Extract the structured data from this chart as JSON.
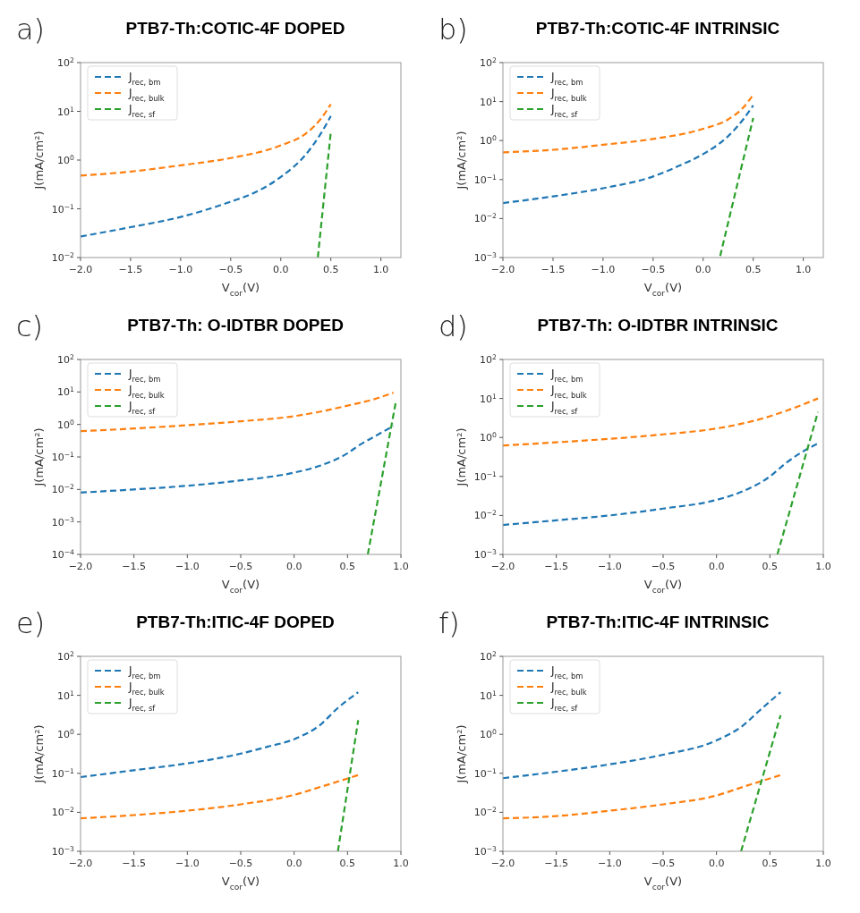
{
  "chart_data": [
    {
      "type": "line",
      "title": "PTB7-Th:COTIC-4F DOPED",
      "annotations": [
        "a)"
      ],
      "xlabel": "V$_{cor}$(V)",
      "ylabel": "J(mA/cm²)",
      "log": "y",
      "legend": "top left",
      "line_style": "dashed",
      "xlim": [
        -2,
        1.2
      ],
      "xticks": [
        {
          "value": -2,
          "label": "−2.0"
        },
        {
          "value": -1.5,
          "label": "−1.5"
        },
        {
          "value": -1,
          "label": "−1.0"
        },
        {
          "value": -0.5,
          "label": "−0.5"
        },
        {
          "value": 0,
          "label": "0.0"
        },
        {
          "value": 0.5,
          "label": "0.5"
        },
        {
          "value": 1,
          "label": "1.0"
        }
      ],
      "ylim": [
        0.01,
        100
      ],
      "yticks": [
        {
          "value": 0.01,
          "label": "10$^{−2}$"
        },
        {
          "value": 0.1,
          "label": "10$^{−1}$"
        },
        {
          "value": 1,
          "label": "10$^{0}$"
        },
        {
          "value": 10,
          "label": "10$^{1}$"
        },
        {
          "value": 100,
          "label": "10$^{2}$"
        }
      ],
      "series": [
        {
          "name": "J$_{rec, bm}$",
          "color": "#1f77b4",
          "x": [
            -2,
            -1.5,
            -1,
            -0.5,
            -0.25,
            0,
            0.25,
            0.4,
            0.5
          ],
          "values": [
            0.027,
            0.042,
            0.068,
            0.14,
            0.22,
            0.45,
            1.3,
            3.5,
            8
          ]
        },
        {
          "name": "J$_{rec, bulk}$",
          "color": "#ff7f0e",
          "x": [
            -2,
            -1.5,
            -1,
            -0.5,
            0,
            0.25,
            0.4,
            0.5
          ],
          "values": [
            0.48,
            0.58,
            0.78,
            1.1,
            2,
            3.5,
            7,
            14
          ]
        },
        {
          "name": "J$_{rec, sf}$",
          "color": "#2ca02c",
          "x": [
            0.37,
            0.5
          ],
          "values": [
            0.01,
            3.8
          ]
        }
      ]
    },
    {
      "type": "line",
      "title": "PTB7-Th:COTIC-4F INTRINSIC",
      "annotations": [
        "b)"
      ],
      "xlabel": "V$_{cor}$(V)",
      "ylabel": "J(mA/cm²)",
      "log": "y",
      "legend": "top left",
      "line_style": "dashed",
      "xlim": [
        -2,
        1.2
      ],
      "xticks": [
        {
          "value": -2,
          "label": "−2.0"
        },
        {
          "value": -1.5,
          "label": "−1.5"
        },
        {
          "value": -1,
          "label": "−1.0"
        },
        {
          "value": -0.5,
          "label": "−0.5"
        },
        {
          "value": 0,
          "label": "0.0"
        },
        {
          "value": 0.5,
          "label": "0.5"
        },
        {
          "value": 1,
          "label": "1.0"
        }
      ],
      "ylim": [
        0.001,
        100
      ],
      "yticks": [
        {
          "value": 0.001,
          "label": "10$^{−3}$"
        },
        {
          "value": 0.01,
          "label": "10$^{−2}$"
        },
        {
          "value": 0.1,
          "label": "10$^{−1}$"
        },
        {
          "value": 1,
          "label": "10$^{0}$"
        },
        {
          "value": 10,
          "label": "10$^{1}$"
        },
        {
          "value": 100,
          "label": "10$^{2}$"
        }
      ],
      "series": [
        {
          "name": "J$_{rec, bm}$",
          "color": "#1f77b4",
          "x": [
            -2,
            -1.5,
            -1,
            -0.5,
            -0.25,
            0,
            0.25,
            0.4,
            0.5
          ],
          "values": [
            0.025,
            0.037,
            0.06,
            0.12,
            0.22,
            0.45,
            1.3,
            3.5,
            8
          ]
        },
        {
          "name": "J$_{rec, bulk}$",
          "color": "#ff7f0e",
          "x": [
            -2,
            -1.5,
            -1,
            -0.5,
            0,
            0.25,
            0.4,
            0.5
          ],
          "values": [
            0.5,
            0.58,
            0.78,
            1.1,
            2,
            3.5,
            7,
            15
          ]
        },
        {
          "name": "J$_{rec, sf}$",
          "color": "#2ca02c",
          "x": [
            0.17,
            0.5
          ],
          "values": [
            0.0011,
            3.8
          ]
        }
      ]
    },
    {
      "type": "line",
      "title": "PTB7-Th: O-IDTBR DOPED",
      "annotations": [
        "c)"
      ],
      "xlabel": "V$_{cor}$(V)",
      "ylabel": "J(mA/cm²)",
      "log": "y",
      "legend": "top left",
      "line_style": "dashed",
      "xlim": [
        -2,
        1
      ],
      "xticks": [
        {
          "value": -2,
          "label": "−2.0"
        },
        {
          "value": -1.5,
          "label": "−1.5"
        },
        {
          "value": -1,
          "label": "−1.0"
        },
        {
          "value": -0.5,
          "label": "−0.5"
        },
        {
          "value": 0,
          "label": "0.0"
        },
        {
          "value": 0.5,
          "label": "0.5"
        },
        {
          "value": 1,
          "label": "1.0"
        }
      ],
      "ylim": [
        0.0001,
        100
      ],
      "yticks": [
        {
          "value": 0.0001,
          "label": "10$^{−4}$"
        },
        {
          "value": 0.001,
          "label": "10$^{−3}$"
        },
        {
          "value": 0.01,
          "label": "10$^{−2}$"
        },
        {
          "value": 0.1,
          "label": "10$^{−1}$"
        },
        {
          "value": 1,
          "label": "10$^{0}$"
        },
        {
          "value": 10,
          "label": "10$^{1}$"
        },
        {
          "value": 100,
          "label": "10$^{2}$"
        }
      ],
      "series": [
        {
          "name": "J$_{rec, bm}$",
          "color": "#1f77b4",
          "x": [
            -2,
            -1.5,
            -1,
            -0.5,
            0,
            0.25,
            0.5,
            0.6,
            0.75,
            0.93
          ],
          "values": [
            0.008,
            0.01,
            0.013,
            0.019,
            0.033,
            0.055,
            0.13,
            0.22,
            0.42,
            0.9
          ]
        },
        {
          "name": "J$_{rec, bulk}$",
          "color": "#ff7f0e",
          "x": [
            -2,
            -1.5,
            -1,
            -0.5,
            0,
            0.25,
            0.5,
            0.75,
            0.93
          ],
          "values": [
            0.62,
            0.75,
            0.95,
            1.25,
            1.8,
            2.5,
            3.8,
            6,
            9.5
          ]
        },
        {
          "name": "J$_{rec, sf}$",
          "color": "#2ca02c",
          "x": [
            0.69,
            0.95
          ],
          "values": [
            0.0001,
            4.5
          ]
        }
      ]
    },
    {
      "type": "line",
      "title": "PTB7-Th: O-IDTBR INTRINSIC",
      "annotations": [
        "d)"
      ],
      "xlabel": "V$_{cor}$(V)",
      "ylabel": "J(mA/cm²)",
      "log": "y",
      "legend": "top left",
      "line_style": "dashed",
      "xlim": [
        -2,
        1
      ],
      "xticks": [
        {
          "value": -2,
          "label": "−2.0"
        },
        {
          "value": -1.5,
          "label": "−1.5"
        },
        {
          "value": -1,
          "label": "−1.0"
        },
        {
          "value": -0.5,
          "label": "−0.5"
        },
        {
          "value": 0,
          "label": "0.0"
        },
        {
          "value": 0.5,
          "label": "0.5"
        },
        {
          "value": 1,
          "label": "1.0"
        }
      ],
      "ylim": [
        0.001,
        100
      ],
      "yticks": [
        {
          "value": 0.001,
          "label": "10$^{−3}$"
        },
        {
          "value": 0.01,
          "label": "10$^{−2}$"
        },
        {
          "value": 0.1,
          "label": "10$^{−1}$"
        },
        {
          "value": 1,
          "label": "10$^{0}$"
        },
        {
          "value": 10,
          "label": "10$^{1}$"
        },
        {
          "value": 100,
          "label": "10$^{2}$"
        }
      ],
      "series": [
        {
          "name": "J$_{rec, bm}$",
          "color": "#1f77b4",
          "x": [
            -2,
            -1.5,
            -1,
            -0.5,
            0,
            0.25,
            0.5,
            0.65,
            0.8,
            0.95
          ],
          "values": [
            0.0057,
            0.0075,
            0.01,
            0.015,
            0.025,
            0.042,
            0.1,
            0.22,
            0.42,
            0.7
          ]
        },
        {
          "name": "J$_{rec, bulk}$",
          "color": "#ff7f0e",
          "x": [
            -2,
            -1.5,
            -1,
            -0.5,
            0,
            0.25,
            0.5,
            0.65,
            0.95
          ],
          "values": [
            0.62,
            0.75,
            0.92,
            1.2,
            1.7,
            2.3,
            3.5,
            4.8,
            10
          ]
        },
        {
          "name": "J$_{rec, sf}$",
          "color": "#2ca02c",
          "x": [
            0.57,
            0.95
          ],
          "values": [
            0.001,
            4.5
          ]
        }
      ]
    },
    {
      "type": "line",
      "title": "PTB7-Th:ITIC-4F DOPED",
      "annotations": [
        "e)"
      ],
      "xlabel": "V$_{cor}$(V)",
      "ylabel": "J(mA/cm²)",
      "log": "y",
      "legend": "top left",
      "line_style": "dashed",
      "xlim": [
        -2,
        1
      ],
      "xticks": [
        {
          "value": -2,
          "label": "−2.0"
        },
        {
          "value": -1.5,
          "label": "−1.5"
        },
        {
          "value": -1,
          "label": "−1.0"
        },
        {
          "value": -0.5,
          "label": "−0.5"
        },
        {
          "value": 0,
          "label": "0.0"
        },
        {
          "value": 0.5,
          "label": "0.5"
        },
        {
          "value": 1,
          "label": "1.0"
        }
      ],
      "ylim": [
        0.001,
        100
      ],
      "yticks": [
        {
          "value": 0.001,
          "label": "10$^{−3}$"
        },
        {
          "value": 0.01,
          "label": "10$^{−2}$"
        },
        {
          "value": 0.1,
          "label": "10$^{−1}$"
        },
        {
          "value": 1,
          "label": "10$^{0}$"
        },
        {
          "value": 10,
          "label": "10$^{1}$"
        },
        {
          "value": 100,
          "label": "10$^{2}$"
        }
      ],
      "series": [
        {
          "name": "J$_{rec, bm}$",
          "color": "#1f77b4",
          "x": [
            -2,
            -1.5,
            -1,
            -0.5,
            -0.25,
            0,
            0.25,
            0.4,
            0.6
          ],
          "values": [
            0.08,
            0.12,
            0.18,
            0.32,
            0.48,
            0.75,
            1.8,
            4.5,
            12
          ]
        },
        {
          "name": "J$_{rec, bulk}$",
          "color": "#ff7f0e",
          "x": [
            -2,
            -1.5,
            -1,
            -0.5,
            0,
            0.25,
            0.6
          ],
          "values": [
            0.007,
            0.0085,
            0.011,
            0.016,
            0.028,
            0.045,
            0.09
          ]
        },
        {
          "name": "J$_{rec, sf}$",
          "color": "#2ca02c",
          "x": [
            0.41,
            0.6
          ],
          "values": [
            0.001,
            2.3
          ]
        }
      ]
    },
    {
      "type": "line",
      "title": "PTB7-Th:ITIC-4F INTRINSIC",
      "annotations": [
        "f)"
      ],
      "xlabel": "V$_{cor}$(V)",
      "ylabel": "J(mA/cm²)",
      "log": "y",
      "legend": "top left",
      "line_style": "dashed",
      "xlim": [
        -2,
        1
      ],
      "xticks": [
        {
          "value": -2,
          "label": "−2.0"
        },
        {
          "value": -1.5,
          "label": "−1.5"
        },
        {
          "value": -1,
          "label": "−1.0"
        },
        {
          "value": -0.5,
          "label": "−0.5"
        },
        {
          "value": 0,
          "label": "0.0"
        },
        {
          "value": 0.5,
          "label": "0.5"
        },
        {
          "value": 1,
          "label": "1.0"
        }
      ],
      "ylim": [
        0.001,
        100
      ],
      "yticks": [
        {
          "value": 0.001,
          "label": "10$^{−3}$"
        },
        {
          "value": 0.01,
          "label": "10$^{−2}$"
        },
        {
          "value": 0.1,
          "label": "10$^{−1}$"
        },
        {
          "value": 1,
          "label": "10$^{0}$"
        },
        {
          "value": 10,
          "label": "10$^{1}$"
        },
        {
          "value": 100,
          "label": "10$^{2}$"
        }
      ],
      "series": [
        {
          "name": "J$_{rec, bm}$",
          "color": "#1f77b4",
          "x": [
            -2,
            -1.5,
            -1,
            -0.5,
            0,
            0.25,
            0.4,
            0.6
          ],
          "values": [
            0.075,
            0.11,
            0.17,
            0.3,
            0.7,
            1.7,
            4,
            12
          ]
        },
        {
          "name": "J$_{rec, bulk}$",
          "color": "#ff7f0e",
          "x": [
            -2,
            -1.5,
            -1,
            -0.5,
            0,
            0.25,
            0.6
          ],
          "values": [
            0.007,
            0.008,
            0.011,
            0.016,
            0.027,
            0.045,
            0.09
          ]
        },
        {
          "name": "J$_{rec, sf}$",
          "color": "#2ca02c",
          "x": [
            0.23,
            0.6
          ],
          "values": [
            0.001,
            3.1
          ]
        }
      ]
    }
  ]
}
